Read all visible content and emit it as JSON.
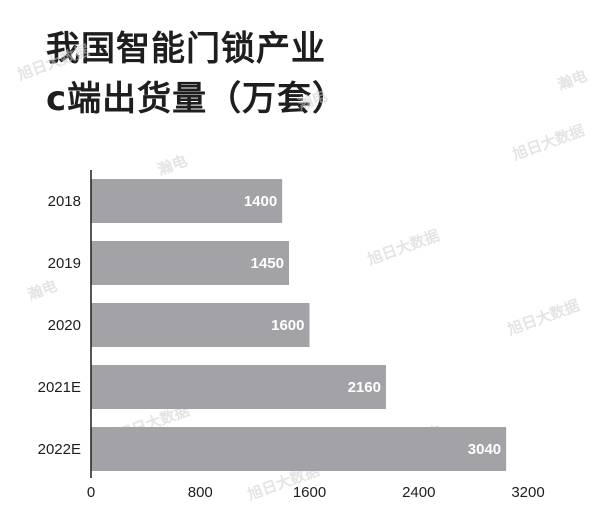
{
  "title_line1": "我国智能门锁产业",
  "title_line2": "c端出货量（万套）",
  "watermarks": [
    "旭日大数据",
    "瀚电"
  ],
  "colors": {
    "bar": "#a3a2a7",
    "axis": "#1e1e1e",
    "text": "#1e1e1e",
    "label": "#ffffff"
  },
  "chart_data": {
    "type": "bar",
    "orientation": "horizontal",
    "title": "我国智能门锁产业 c端出货量（万套）",
    "categories": [
      "2018",
      "2019",
      "2020",
      "2021E",
      "2022E"
    ],
    "values": [
      1400,
      1450,
      1600,
      2160,
      3040
    ],
    "xlim": [
      0,
      3200
    ],
    "xticks": [
      0,
      800,
      1600,
      2400,
      3200
    ],
    "grid": false,
    "legend": "none"
  }
}
